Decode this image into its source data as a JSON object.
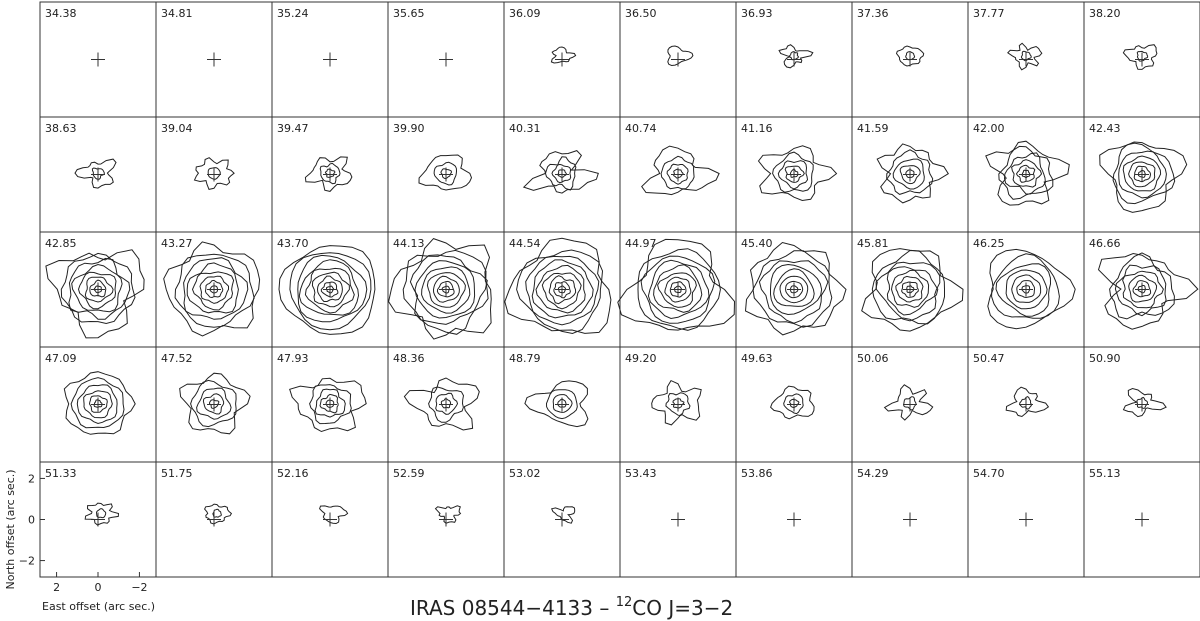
{
  "title": "IRAS 08544−4133  –  ",
  "title_sup": "12",
  "title_tail": "CO J=3−2",
  "chart_data": {
    "type": "contour",
    "grid": {
      "rows": 5,
      "cols": 10
    },
    "xlabel": "East offset (arc sec.)",
    "ylabel": "North offset (arc sec.)",
    "xlim": [
      2.8,
      -2.8
    ],
    "ylim": [
      -2.8,
      2.8
    ],
    "x_ticks": [
      "2",
      "0",
      "−2"
    ],
    "y_ticks": [
      "2",
      "0",
      "−2"
    ],
    "channels": [
      {
        "v": "34.38",
        "i": 0.0
      },
      {
        "v": "34.81",
        "i": 0.0
      },
      {
        "v": "35.24",
        "i": 0.0
      },
      {
        "v": "35.65",
        "i": 0.0
      },
      {
        "v": "36.09",
        "i": 0.03
      },
      {
        "v": "36.50",
        "i": 0.06
      },
      {
        "v": "36.93",
        "i": 0.07
      },
      {
        "v": "37.36",
        "i": 0.08
      },
      {
        "v": "37.77",
        "i": 0.1
      },
      {
        "v": "38.20",
        "i": 0.12
      },
      {
        "v": "38.63",
        "i": 0.15
      },
      {
        "v": "39.04",
        "i": 0.18
      },
      {
        "v": "39.47",
        "i": 0.22
      },
      {
        "v": "39.90",
        "i": 0.28
      },
      {
        "v": "40.31",
        "i": 0.34
      },
      {
        "v": "40.74",
        "i": 0.4
      },
      {
        "v": "41.16",
        "i": 0.46
      },
      {
        "v": "41.59",
        "i": 0.52
      },
      {
        "v": "42.00",
        "i": 0.6
      },
      {
        "v": "42.43",
        "i": 0.7
      },
      {
        "v": "42.85",
        "i": 0.85
      },
      {
        "v": "43.27",
        "i": 0.92
      },
      {
        "v": "43.70",
        "i": 0.96
      },
      {
        "v": "44.13",
        "i": 1.0
      },
      {
        "v": "44.54",
        "i": 1.0
      },
      {
        "v": "44.97",
        "i": 0.98
      },
      {
        "v": "45.40",
        "i": 0.92
      },
      {
        "v": "45.81",
        "i": 0.86
      },
      {
        "v": "46.25",
        "i": 0.8
      },
      {
        "v": "46.66",
        "i": 0.74
      },
      {
        "v": "47.09",
        "i": 0.62
      },
      {
        "v": "47.52",
        "i": 0.55
      },
      {
        "v": "47.93",
        "i": 0.48
      },
      {
        "v": "48.36",
        "i": 0.42
      },
      {
        "v": "48.79",
        "i": 0.36
      },
      {
        "v": "49.20",
        "i": 0.28
      },
      {
        "v": "49.63",
        "i": 0.22
      },
      {
        "v": "50.06",
        "i": 0.18
      },
      {
        "v": "50.47",
        "i": 0.15
      },
      {
        "v": "50.90",
        "i": 0.13
      },
      {
        "v": "51.33",
        "i": 0.1
      },
      {
        "v": "51.75",
        "i": 0.07
      },
      {
        "v": "52.16",
        "i": 0.06
      },
      {
        "v": "52.59",
        "i": 0.04
      },
      {
        "v": "53.02",
        "i": 0.02
      },
      {
        "v": "53.43",
        "i": 0.0
      },
      {
        "v": "53.86",
        "i": 0.0
      },
      {
        "v": "54.29",
        "i": 0.0
      },
      {
        "v": "54.70",
        "i": 0.0
      },
      {
        "v": "55.13",
        "i": 0.0
      }
    ]
  }
}
